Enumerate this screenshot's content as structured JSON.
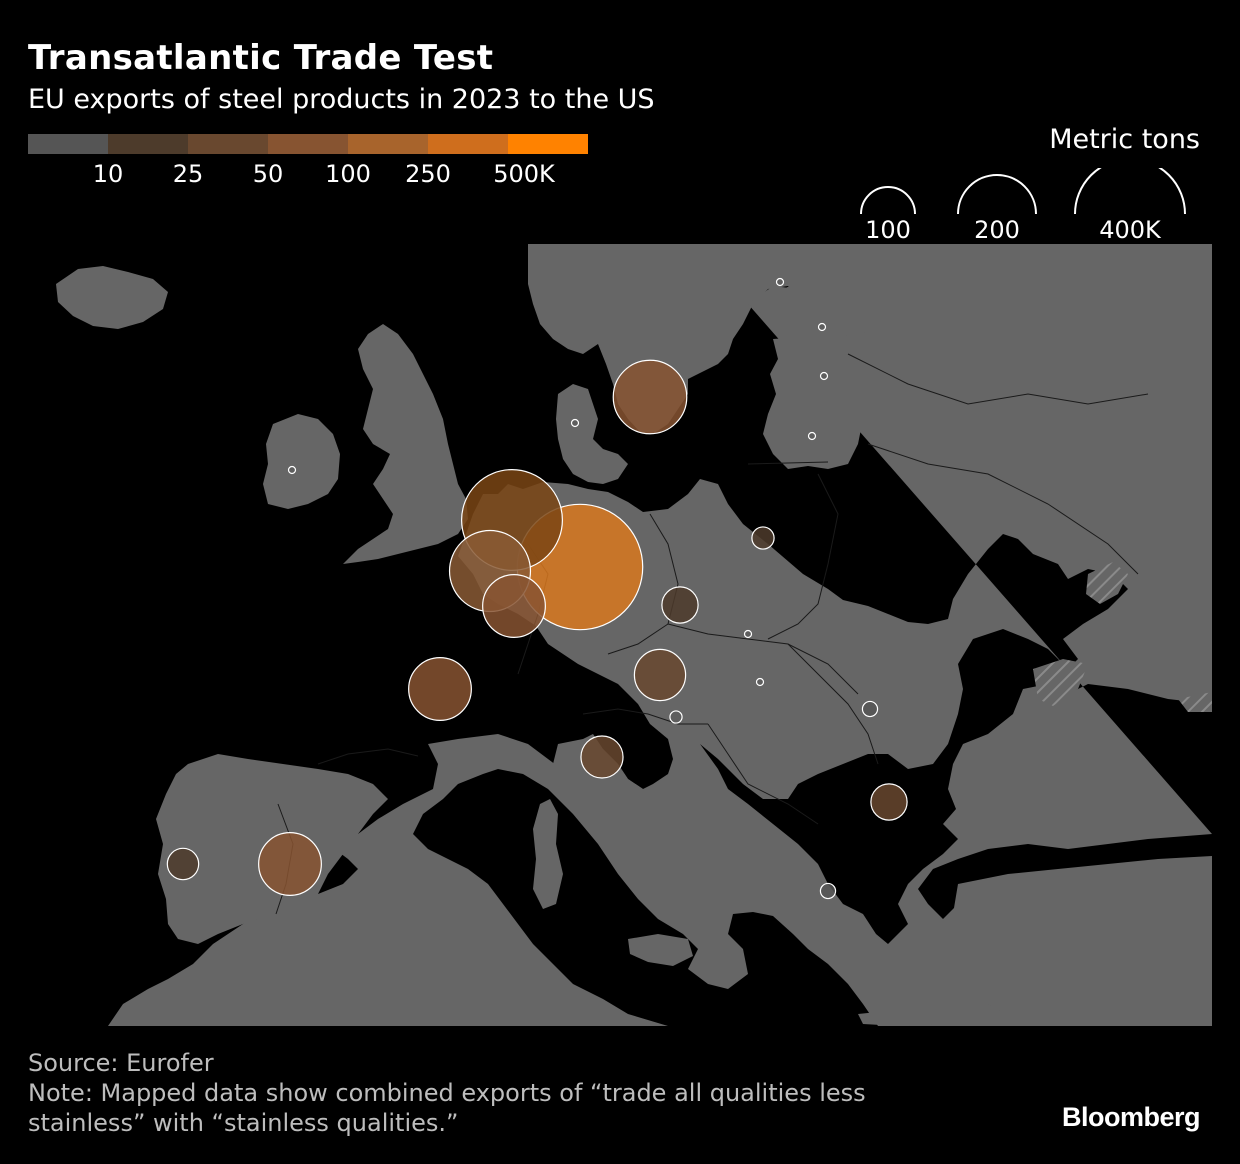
{
  "header": {
    "title": "Transatlantic Trade Test",
    "subtitle": "EU exports of steel products in 2023 to the US"
  },
  "color_legend": {
    "colors": [
      "#555555",
      "#4d3b2b",
      "#69482f",
      "#875431",
      "#a8642c",
      "#cf6e1d",
      "#ff8200"
    ],
    "labels": [
      "10",
      "25",
      "50",
      "100",
      "250",
      "500K"
    ]
  },
  "size_legend": {
    "title": "Metric tons",
    "labels": [
      "100",
      "200",
      "400K"
    ],
    "values": [
      100000,
      200000,
      400000
    ]
  },
  "map": {
    "land_color": "#666666",
    "sea_color": "#000000",
    "bubbles": [
      {
        "id": "germany",
        "value": 480000,
        "color": "#d8781f"
      },
      {
        "id": "netherlands",
        "value": 310000,
        "color": "#7a4514"
      },
      {
        "id": "belgium",
        "value": 200000,
        "color": "#8a5a35"
      },
      {
        "id": "luxembourg",
        "value": 120000,
        "color": "#875431"
      },
      {
        "id": "sweden",
        "value": 165000,
        "color": "#875431"
      },
      {
        "id": "france",
        "value": 120000,
        "color": "#875431"
      },
      {
        "id": "spain",
        "value": 120000,
        "color": "#875431"
      },
      {
        "id": "austria",
        "value": 80000,
        "color": "#69482f"
      },
      {
        "id": "italy",
        "value": 54000,
        "color": "#69482f"
      },
      {
        "id": "czechia",
        "value": 40000,
        "color": "#4d3b2b"
      },
      {
        "id": "bulgaria",
        "value": 40000,
        "color": "#69482f"
      },
      {
        "id": "portugal",
        "value": 30000,
        "color": "#4d3b2b"
      },
      {
        "id": "poland",
        "value": 15000,
        "color": "#4d3b2b"
      },
      {
        "id": "romania",
        "value": 7000,
        "color": "#555555"
      },
      {
        "id": "greece",
        "value": 7000,
        "color": "#555555"
      },
      {
        "id": "slovenia",
        "value": 4500,
        "color": "#555555"
      },
      {
        "id": "denmark",
        "value": 1500,
        "color": "#555555"
      },
      {
        "id": "ireland",
        "value": 1500,
        "color": "#555555"
      },
      {
        "id": "finland",
        "value": 1500,
        "color": "#555555"
      },
      {
        "id": "estonia",
        "value": 1000,
        "color": "#555555"
      },
      {
        "id": "latvia",
        "value": 1000,
        "color": "#555555"
      },
      {
        "id": "lithuania",
        "value": 1000,
        "color": "#555555"
      },
      {
        "id": "slovakia",
        "value": 1000,
        "color": "#555555"
      },
      {
        "id": "hungary",
        "value": 1000,
        "color": "#555555"
      }
    ]
  },
  "footer": {
    "source": "Source: Eurofer",
    "note_line1": "Note: Mapped data show combined exports of “trade all qualities less",
    "note_line2": "stainless” with “stainless qualities.”"
  },
  "brand": "Bloomberg"
}
